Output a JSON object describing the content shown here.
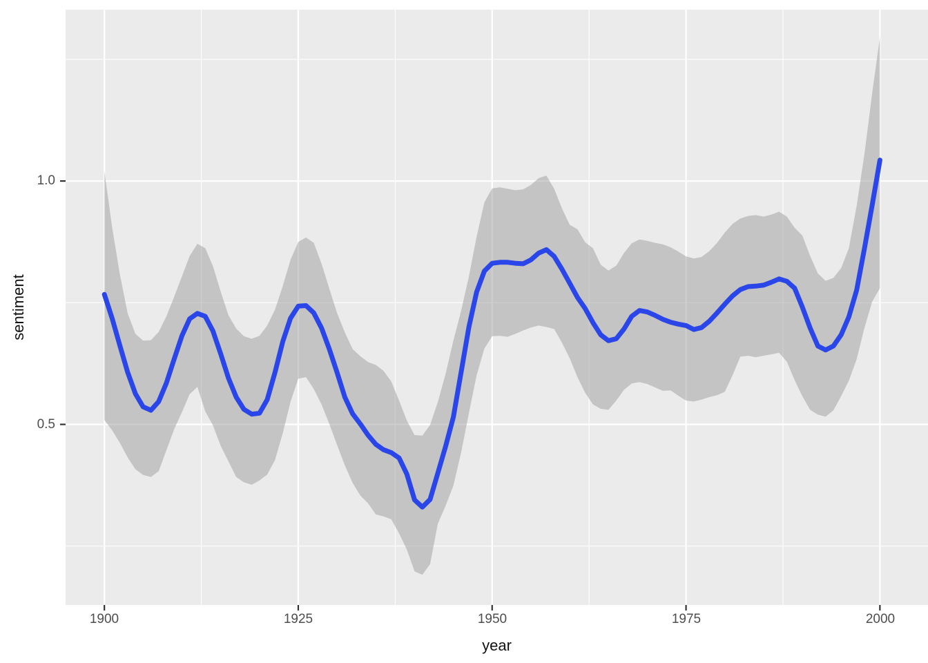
{
  "chart_data": {
    "type": "line",
    "title": "",
    "xlabel": "year",
    "ylabel": "sentiment",
    "legend_position": "none",
    "grid": true,
    "panel_background": "#EBEBEB",
    "grid_color": "#FFFFFF",
    "line_color": "#2B46E8",
    "ribbon_color": "rgba(153,153,153,0.48)",
    "tick_color": "#333333",
    "tick_label_color": "#4D4D4D",
    "axis_title_color": "#111111",
    "xlim": [
      1895,
      2006.2
    ],
    "ylim": [
      0.129,
      1.352
    ],
    "x_breaks": [
      1900,
      1925,
      1950,
      1975,
      2000
    ],
    "x_tick_labels": [
      "1900",
      "1925",
      "1950",
      "1975",
      "2000"
    ],
    "x_minor_breaks": [
      1912.5,
      1937.5,
      1962.5,
      1987.5
    ],
    "y_breaks": [
      0.5,
      1.0
    ],
    "y_tick_labels": [
      "0.5",
      "1.0"
    ],
    "y_minor_breaks": [
      0.25,
      0.75,
      1.25
    ],
    "x": [
      1900,
      1901,
      1902,
      1903,
      1904,
      1905,
      1906,
      1907,
      1908,
      1909,
      1910,
      1911,
      1912,
      1913,
      1914,
      1915,
      1916,
      1917,
      1918,
      1919,
      1920,
      1921,
      1922,
      1923,
      1924,
      1925,
      1926,
      1927,
      1928,
      1929,
      1930,
      1931,
      1932,
      1933,
      1934,
      1935,
      1936,
      1937,
      1938,
      1939,
      1940,
      1941,
      1942,
      1943,
      1944,
      1945,
      1946,
      1947,
      1948,
      1949,
      1950,
      1951,
      1952,
      1953,
      1954,
      1955,
      1956,
      1957,
      1958,
      1959,
      1960,
      1961,
      1962,
      1963,
      1964,
      1965,
      1966,
      1967,
      1968,
      1969,
      1970,
      1971,
      1972,
      1973,
      1974,
      1975,
      1976,
      1977,
      1978,
      1979,
      1980,
      1981,
      1982,
      1983,
      1984,
      1985,
      1986,
      1987,
      1988,
      1989,
      1990,
      1991,
      1992,
      1993,
      1994,
      1995,
      1996,
      1997,
      1998,
      1999,
      2000
    ],
    "series": [
      {
        "name": "sentiment_loess_fit",
        "values": [
          0.767,
          0.718,
          0.662,
          0.607,
          0.563,
          0.536,
          0.529,
          0.547,
          0.585,
          0.634,
          0.682,
          0.717,
          0.728,
          0.722,
          0.692,
          0.645,
          0.595,
          0.556,
          0.531,
          0.521,
          0.523,
          0.551,
          0.607,
          0.67,
          0.718,
          0.743,
          0.744,
          0.729,
          0.698,
          0.655,
          0.607,
          0.556,
          0.522,
          0.501,
          0.478,
          0.459,
          0.448,
          0.442,
          0.431,
          0.398,
          0.345,
          0.33,
          0.346,
          0.4,
          0.455,
          0.515,
          0.607,
          0.7,
          0.772,
          0.815,
          0.831,
          0.833,
          0.833,
          0.831,
          0.83,
          0.838,
          0.852,
          0.859,
          0.845,
          0.819,
          0.79,
          0.761,
          0.738,
          0.709,
          0.684,
          0.672,
          0.676,
          0.696,
          0.722,
          0.734,
          0.731,
          0.724,
          0.716,
          0.71,
          0.706,
          0.703,
          0.695,
          0.699,
          0.712,
          0.729,
          0.747,
          0.764,
          0.777,
          0.783,
          0.784,
          0.786,
          0.792,
          0.799,
          0.794,
          0.78,
          0.741,
          0.698,
          0.661,
          0.653,
          0.661,
          0.684,
          0.721,
          0.776,
          0.861,
          0.95,
          1.043
        ]
      }
    ],
    "ribbon": {
      "name": "confidence_band",
      "lower": [
        0.509,
        0.488,
        0.462,
        0.432,
        0.408,
        0.396,
        0.392,
        0.404,
        0.447,
        0.49,
        0.525,
        0.562,
        0.577,
        0.527,
        0.498,
        0.456,
        0.424,
        0.392,
        0.381,
        0.376,
        0.385,
        0.397,
        0.427,
        0.482,
        0.546,
        0.594,
        0.597,
        0.573,
        0.541,
        0.501,
        0.458,
        0.416,
        0.38,
        0.354,
        0.338,
        0.315,
        0.311,
        0.305,
        0.276,
        0.243,
        0.198,
        0.191,
        0.213,
        0.296,
        0.333,
        0.374,
        0.442,
        0.523,
        0.601,
        0.656,
        0.681,
        0.682,
        0.68,
        0.686,
        0.693,
        0.699,
        0.703,
        0.7,
        0.696,
        0.668,
        0.636,
        0.597,
        0.565,
        0.541,
        0.532,
        0.53,
        0.549,
        0.571,
        0.584,
        0.587,
        0.583,
        0.576,
        0.569,
        0.57,
        0.559,
        0.549,
        0.547,
        0.551,
        0.556,
        0.56,
        0.567,
        0.601,
        0.639,
        0.641,
        0.638,
        0.641,
        0.644,
        0.647,
        0.629,
        0.591,
        0.558,
        0.53,
        0.52,
        0.516,
        0.529,
        0.558,
        0.59,
        0.634,
        0.698,
        0.752,
        0.78
      ],
      "upper": [
        1.02,
        0.905,
        0.808,
        0.728,
        0.686,
        0.672,
        0.673,
        0.69,
        0.722,
        0.762,
        0.804,
        0.846,
        0.871,
        0.862,
        0.825,
        0.773,
        0.724,
        0.697,
        0.681,
        0.676,
        0.682,
        0.703,
        0.736,
        0.784,
        0.838,
        0.875,
        0.884,
        0.873,
        0.83,
        0.779,
        0.729,
        0.689,
        0.655,
        0.64,
        0.628,
        0.622,
        0.61,
        0.588,
        0.549,
        0.508,
        0.478,
        0.477,
        0.499,
        0.546,
        0.604,
        0.672,
        0.733,
        0.804,
        0.886,
        0.956,
        0.985,
        0.987,
        0.984,
        0.981,
        0.983,
        0.992,
        1.006,
        1.011,
        0.984,
        0.944,
        0.91,
        0.901,
        0.874,
        0.862,
        0.828,
        0.816,
        0.826,
        0.852,
        0.872,
        0.88,
        0.877,
        0.873,
        0.87,
        0.864,
        0.855,
        0.845,
        0.841,
        0.844,
        0.856,
        0.873,
        0.894,
        0.912,
        0.923,
        0.928,
        0.93,
        0.927,
        0.931,
        0.937,
        0.927,
        0.904,
        0.888,
        0.846,
        0.81,
        0.795,
        0.801,
        0.821,
        0.862,
        0.949,
        1.055,
        1.18,
        1.296
      ]
    }
  }
}
